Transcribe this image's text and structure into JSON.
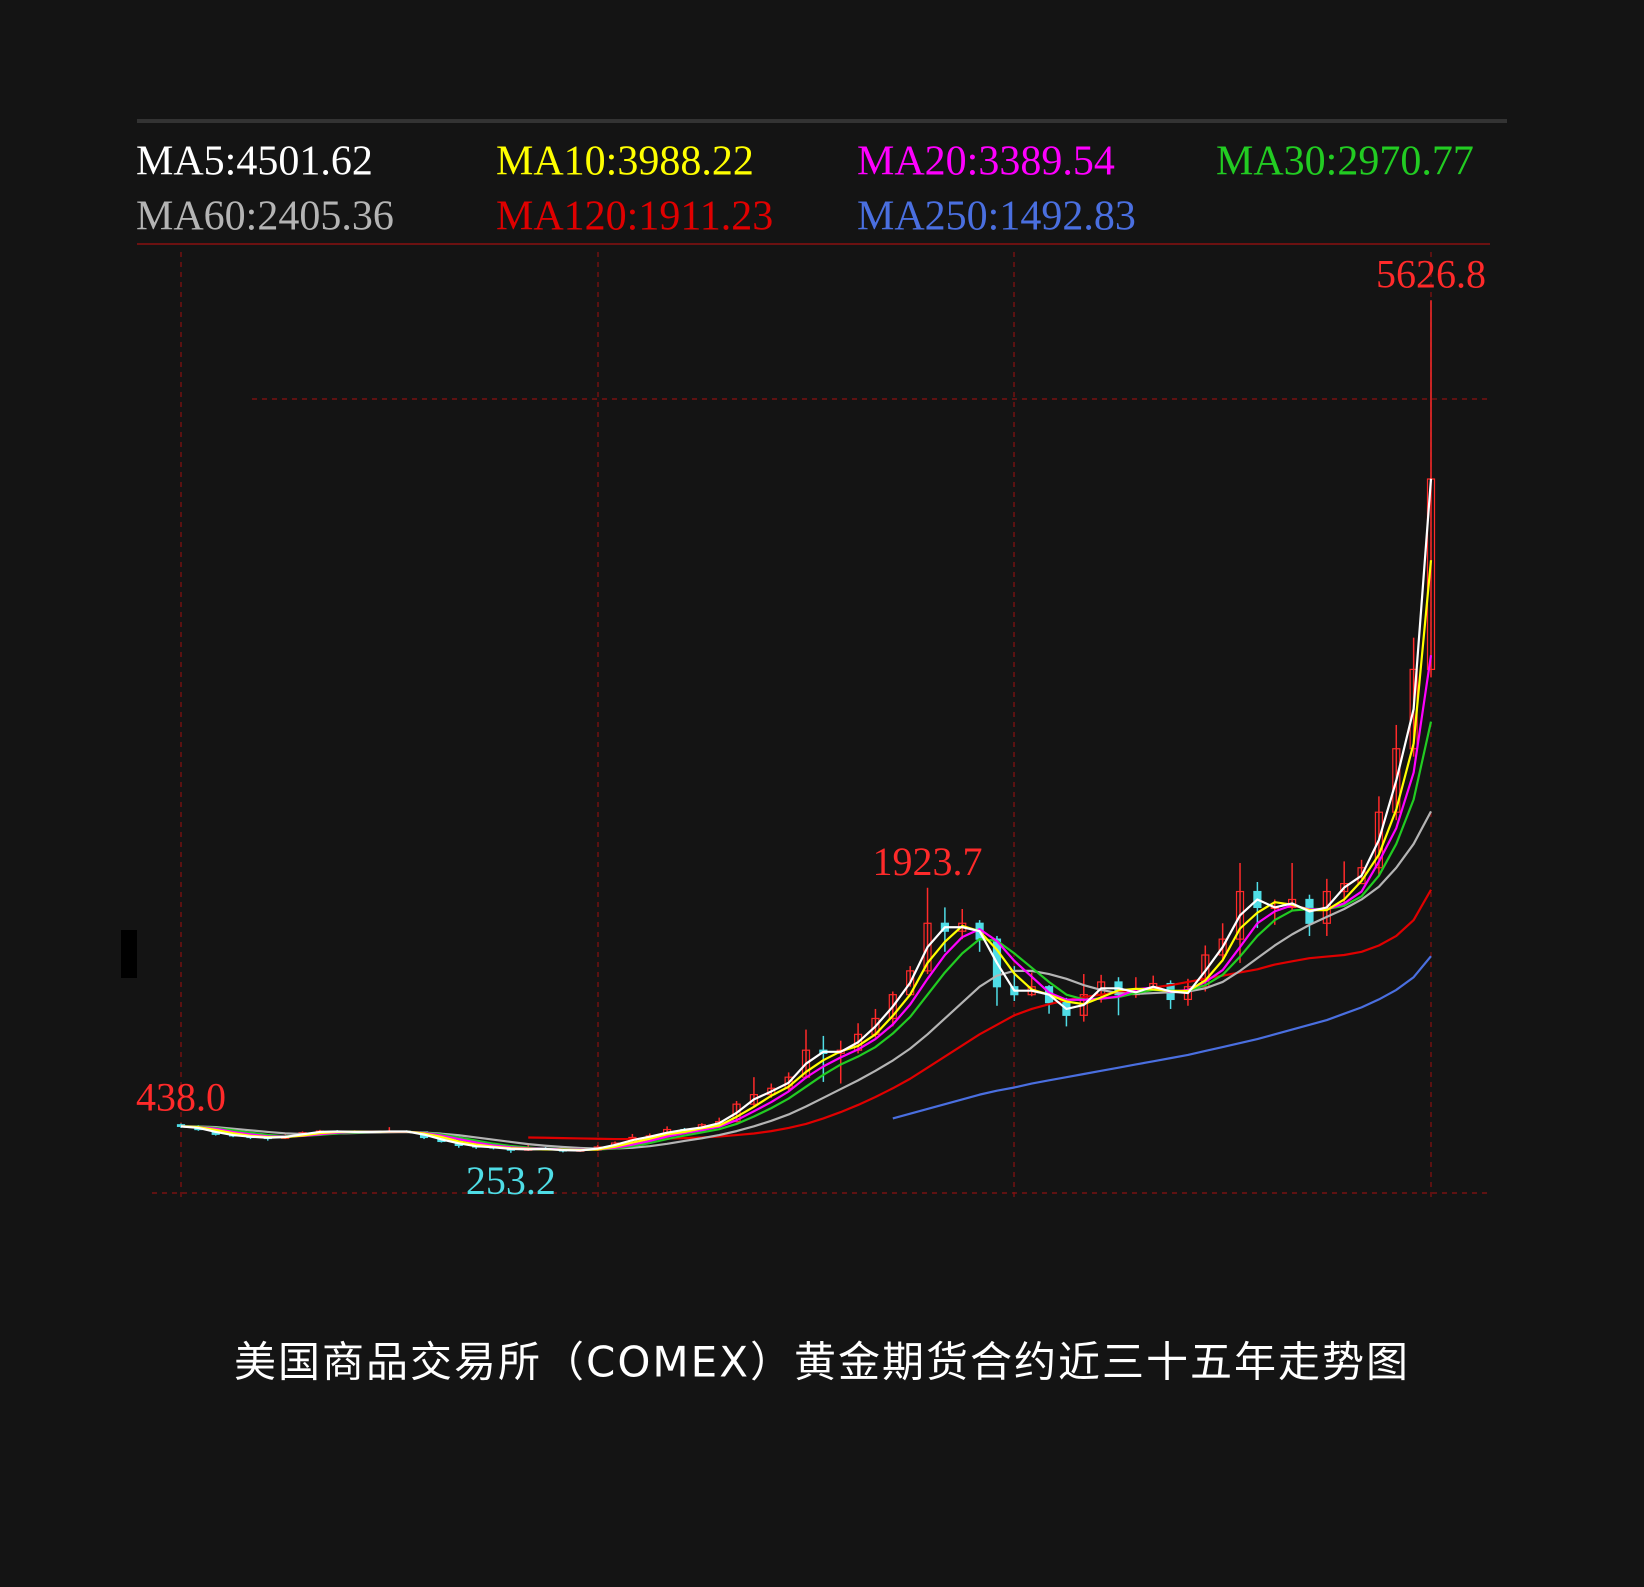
{
  "chart_data": {
    "type": "candlestick",
    "title": "美国商品交易所（COMEX）黄金期货合约近三十五年走势图",
    "ylim": [
      0,
      6000
    ],
    "categories": [
      null,
      null,
      null,
      null,
      null,
      null,
      null,
      null,
      null,
      null,
      null,
      null,
      null,
      null,
      null,
      null,
      null,
      null,
      null,
      null,
      null,
      null,
      null,
      null,
      null,
      null,
      null,
      null,
      null,
      null,
      null,
      null,
      null,
      null,
      null,
      null,
      null,
      null,
      null,
      null,
      null,
      null,
      null,
      null,
      null,
      null,
      null,
      null,
      null,
      null,
      null,
      null,
      null,
      null,
      null,
      null,
      null,
      null,
      null,
      null,
      null,
      null,
      null,
      null,
      null,
      null,
      null,
      null,
      null,
      null,
      null,
      null,
      null
    ],
    "candles": {
      "up_color": "#ff2a2a",
      "down_color": "#4fdde6",
      "open": [
        430,
        420,
        400,
        370,
        360,
        350,
        345,
        360,
        380,
        390,
        385,
        385,
        385,
        390,
        385,
        350,
        325,
        300,
        290,
        285,
        270,
        280,
        275,
        265,
        270,
        290,
        315,
        350,
        360,
        400,
        395,
        430,
        450,
        560,
        620,
        660,
        730,
        900,
        880,
        900,
        1000,
        1100,
        1250,
        1400,
        1700,
        1650,
        1700,
        1600,
        1300,
        1250,
        1300,
        1200,
        1120,
        1250,
        1330,
        1250,
        1280,
        1320,
        1220,
        1300,
        1500,
        1600,
        1900,
        1800,
        1800,
        1850,
        1700,
        1900,
        1950,
        2050,
        2400,
        2800,
        3300
      ],
      "high": [
        438,
        428,
        405,
        378,
        365,
        356,
        368,
        388,
        398,
        396,
        395,
        392,
        415,
        395,
        388,
        356,
        330,
        310,
        295,
        290,
        315,
        290,
        280,
        278,
        302,
        325,
        372,
        375,
        420,
        410,
        440,
        475,
        580,
        730,
        690,
        760,
        1030,
        990,
        960,
        1070,
        1160,
        1270,
        1430,
        1923.7,
        1800,
        1790,
        1720,
        1620,
        1430,
        1390,
        1310,
        1230,
        1380,
        1375,
        1360,
        1360,
        1370,
        1340,
        1350,
        1560,
        1700,
        2080,
        1960,
        1850,
        2080,
        1880,
        1980,
        2090,
        2100,
        2500,
        2950,
        3500,
        5626.8
      ],
      "low": [
        410,
        392,
        362,
        352,
        340,
        330,
        340,
        355,
        372,
        375,
        372,
        376,
        380,
        378,
        340,
        318,
        285,
        278,
        275,
        253.2,
        265,
        268,
        256,
        260,
        265,
        288,
        310,
        340,
        355,
        375,
        390,
        420,
        445,
        540,
        600,
        640,
        720,
        700,
        690,
        880,
        980,
        1050,
        1300,
        1380,
        1520,
        1600,
        1520,
        1180,
        1210,
        1240,
        1130,
        1050,
        1080,
        1200,
        1120,
        1230,
        1300,
        1160,
        1180,
        1270,
        1460,
        1450,
        1670,
        1690,
        1780,
        1620,
        1620,
        1820,
        1980,
        2000,
        2350,
        2750,
        3250
      ],
      "close": [
        420,
        400,
        370,
        360,
        350,
        345,
        360,
        380,
        390,
        385,
        385,
        385,
        390,
        385,
        350,
        325,
        300,
        290,
        285,
        270,
        280,
        275,
        265,
        270,
        290,
        315,
        350,
        360,
        400,
        395,
        430,
        450,
        560,
        620,
        660,
        730,
        900,
        880,
        900,
        1000,
        1100,
        1250,
        1400,
        1700,
        1650,
        1700,
        1600,
        1300,
        1250,
        1300,
        1200,
        1120,
        1250,
        1330,
        1250,
        1280,
        1320,
        1220,
        1300,
        1500,
        1600,
        1900,
        1800,
        1800,
        1850,
        1700,
        1900,
        1950,
        2050,
        2400,
        2800,
        3300,
        4500
      ],
      "high_labels": [
        "438.0",
        null,
        null,
        null,
        null,
        null,
        null,
        null,
        null,
        null,
        null,
        null,
        null,
        null,
        null,
        null,
        null,
        null,
        null,
        null,
        null,
        null,
        null,
        null,
        null,
        null,
        null,
        null,
        null,
        null,
        null,
        null,
        null,
        null,
        null,
        null,
        null,
        null,
        null,
        null,
        null,
        null,
        null,
        "1923.7",
        null,
        null,
        null,
        null,
        null,
        null,
        null,
        null,
        null,
        null,
        null,
        null,
        null,
        null,
        null,
        null,
        null,
        null,
        null,
        null,
        null,
        null,
        null,
        null,
        null,
        null,
        null,
        null,
        "5626.8"
      ],
      "low_labels": [
        null,
        null,
        null,
        null,
        null,
        null,
        null,
        null,
        null,
        null,
        null,
        null,
        null,
        null,
        null,
        null,
        null,
        null,
        null,
        "253.2",
        null,
        null,
        null,
        null,
        null,
        null,
        null,
        null,
        null,
        null,
        null,
        null,
        null,
        null,
        null,
        null,
        null,
        null,
        null,
        null,
        null,
        null,
        null,
        null,
        null,
        null,
        null,
        null,
        null,
        null,
        null,
        null,
        null,
        null,
        null,
        null,
        null,
        null,
        null,
        null,
        null,
        null,
        null,
        null,
        null,
        null,
        null,
        null,
        null,
        null,
        null,
        null,
        null
      ]
    },
    "series": [
      {
        "name": "MA5:4501.62",
        "color": "#ffffff",
        "values": [
          420,
          410,
          385,
          365,
          355,
          348,
          353,
          370,
          385,
          388,
          385,
          385,
          388,
          388,
          368,
          338,
          313,
          295,
          288,
          278,
          275,
          278,
          270,
          268,
          280,
          303,
          333,
          355,
          380,
          398,
          413,
          440,
          505,
          590,
          640,
          695,
          815,
          890,
          890,
          950,
          1050,
          1175,
          1325,
          1550,
          1675,
          1675,
          1650,
          1450,
          1275,
          1275,
          1250,
          1160,
          1185,
          1290,
          1290,
          1265,
          1300,
          1270,
          1260,
          1400,
          1550,
          1750,
          1850,
          1800,
          1825,
          1775,
          1800,
          1925,
          2000,
          2225,
          2600,
          3050,
          4501.62
        ]
      },
      {
        "name": "MA10:3988.22",
        "color": "#ffff00",
        "values": [
          420,
          415,
          397,
          377,
          360,
          352,
          352,
          362,
          377,
          385,
          387,
          385,
          387,
          387,
          375,
          353,
          325,
          305,
          292,
          282,
          278,
          275,
          273,
          270,
          275,
          292,
          318,
          342,
          370,
          385,
          408,
          425,
          480,
          543,
          613,
          670,
          763,
          837,
          893,
          927,
          1000,
          1117,
          1250,
          1450,
          1583,
          1683,
          1650,
          1533,
          1383,
          1283,
          1250,
          1207,
          1190,
          1233,
          1277,
          1287,
          1283,
          1273,
          1273,
          1340,
          1467,
          1667,
          1767,
          1833,
          1817,
          1783,
          1783,
          1850,
          1967,
          2133,
          2417,
          2833,
          3988.22
        ]
      },
      {
        "name": "MA20:3389.54",
        "color": "#ff00ff",
        "values": [
          420,
          415,
          405,
          385,
          370,
          357,
          355,
          360,
          370,
          380,
          385,
          386,
          386,
          386,
          378,
          362,
          340,
          318,
          300,
          288,
          281,
          278,
          274,
          273,
          275,
          285,
          305,
          328,
          356,
          377,
          396,
          418,
          459,
          515,
          573,
          640,
          728,
          798,
          855,
          905,
          970,
          1062,
          1188,
          1350,
          1500,
          1613,
          1663,
          1588,
          1463,
          1363,
          1263,
          1218,
          1218,
          1225,
          1238,
          1283,
          1295,
          1268,
          1280,
          1330,
          1405,
          1550,
          1700,
          1775,
          1813,
          1788,
          1788,
          1825,
          1900,
          2088,
          2300,
          2650,
          3389.54
        ]
      },
      {
        "name": "MA30:2970.77",
        "color": "#22cc22",
        "values": [
          420,
          418,
          410,
          395,
          380,
          366,
          358,
          360,
          366,
          375,
          382,
          385,
          386,
          386,
          380,
          368,
          350,
          330,
          311,
          296,
          286,
          280,
          276,
          274,
          274,
          280,
          295,
          315,
          340,
          362,
          382,
          402,
          435,
          482,
          535,
          595,
          670,
          745,
          810,
          860,
          920,
          1005,
          1110,
          1250,
          1390,
          1510,
          1600,
          1590,
          1510,
          1420,
          1330,
          1250,
          1220,
          1225,
          1235,
          1260,
          1280,
          1275,
          1275,
          1310,
          1375,
          1490,
          1620,
          1720,
          1780,
          1790,
          1790,
          1810,
          1870,
          2000,
          2200,
          2480,
          2970.77
        ]
      },
      {
        "name": "MA60:2405.36",
        "color": "#b4b4b4",
        "values": [
          420,
          419,
          415,
          405,
          395,
          385,
          376,
          372,
          372,
          375,
          378,
          381,
          383,
          384,
          381,
          374,
          364,
          350,
          336,
          322,
          308,
          298,
          290,
          284,
          280,
          280,
          285,
          295,
          310,
          328,
          345,
          365,
          390,
          420,
          455,
          495,
          545,
          600,
          655,
          710,
          770,
          835,
          910,
          1000,
          1100,
          1200,
          1300,
          1370,
          1400,
          1400,
          1380,
          1350,
          1310,
          1280,
          1260,
          1255,
          1260,
          1265,
          1270,
          1290,
          1330,
          1400,
          1480,
          1560,
          1630,
          1690,
          1740,
          1790,
          1850,
          1930,
          2050,
          2200,
          2405.36
        ]
      },
      {
        "name": "MA120:1911.23",
        "color": "#e00000",
        "values": [
          null,
          null,
          null,
          null,
          null,
          null,
          null,
          null,
          null,
          null,
          null,
          null,
          null,
          null,
          null,
          null,
          null,
          null,
          null,
          null,
          350,
          348,
          346,
          344,
          342,
          340,
          340,
          341,
          343,
          346,
          350,
          356,
          365,
          375,
          390,
          410,
          435,
          470,
          510,
          555,
          605,
          660,
          720,
          790,
          860,
          930,
          1000,
          1060,
          1120,
          1160,
          1190,
          1215,
          1235,
          1250,
          1265,
          1280,
          1295,
          1310,
          1330,
          1350,
          1370,
          1390,
          1410,
          1440,
          1460,
          1480,
          1490,
          1500,
          1520,
          1560,
          1620,
          1720,
          1911.23
        ]
      },
      {
        "name": "MA250:1492.83",
        "color": "#4a6fe0",
        "values": [
          null,
          null,
          null,
          null,
          null,
          null,
          null,
          null,
          null,
          null,
          null,
          null,
          null,
          null,
          null,
          null,
          null,
          null,
          null,
          null,
          null,
          null,
          null,
          null,
          null,
          null,
          null,
          null,
          null,
          null,
          null,
          null,
          null,
          null,
          null,
          null,
          null,
          null,
          null,
          null,
          null,
          470,
          500,
          530,
          560,
          590,
          620,
          645,
          665,
          690,
          710,
          730,
          750,
          770,
          790,
          810,
          830,
          850,
          870,
          895,
          920,
          945,
          970,
          1000,
          1030,
          1060,
          1090,
          1130,
          1170,
          1220,
          1280,
          1360,
          1492.83
        ]
      }
    ]
  }
}
